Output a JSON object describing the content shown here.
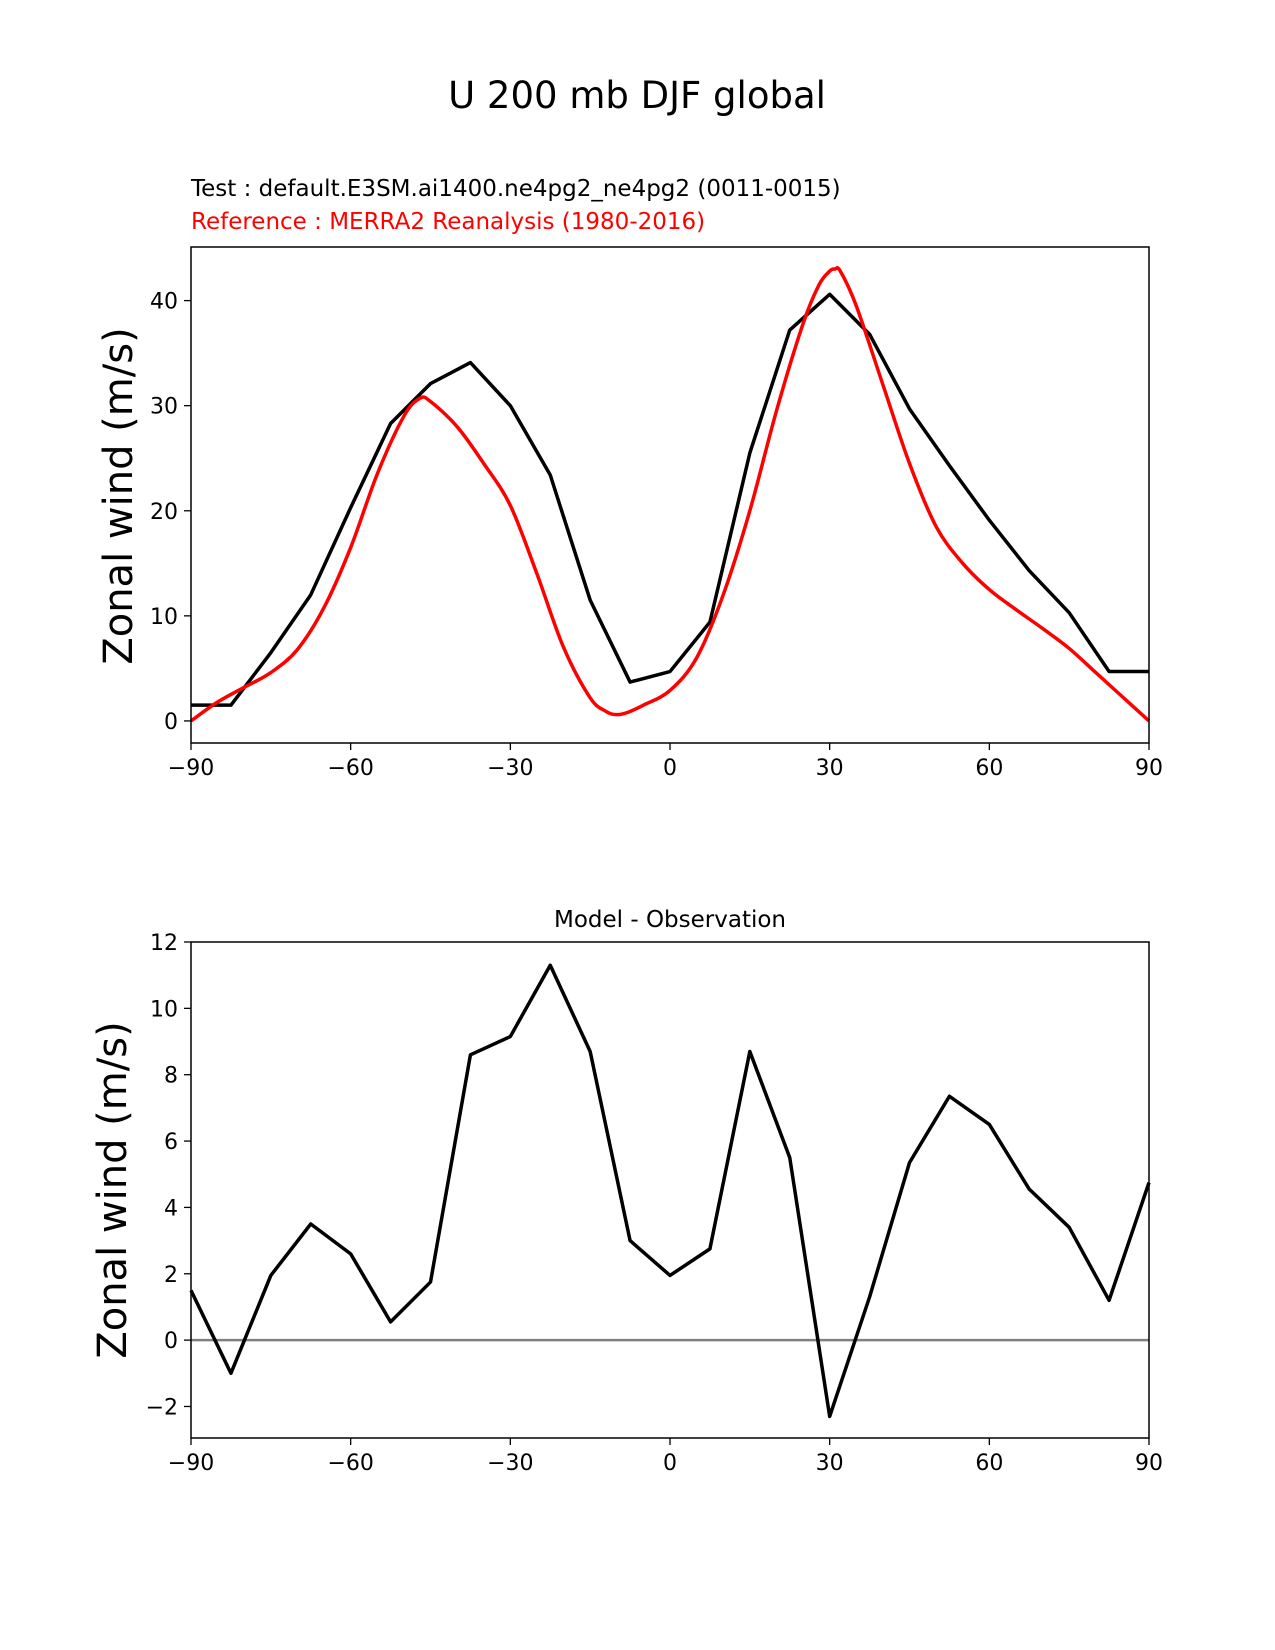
{
  "figure": {
    "title": "U 200 mb DJF global"
  },
  "chart_data": [
    {
      "type": "line",
      "test_label": "Test : default.E3SM.ai1400.ne4pg2_ne4pg2 (0011-0015)",
      "reference_label": "Reference : MERRA2 Reanalysis (1980-2016)",
      "xlabel": "",
      "ylabel": "Zonal wind (m/s)",
      "xlim": [
        -90,
        90
      ],
      "ylim": [
        -2.1,
        45.1
      ],
      "xticks": [
        -90,
        -60,
        -30,
        0,
        30,
        60,
        90
      ],
      "xtick_labels": [
        "−90",
        "−60",
        "−30",
        "0",
        "30",
        "60",
        "90"
      ],
      "yticks": [
        0,
        10,
        20,
        30,
        40
      ],
      "ytick_labels": [
        "0",
        "10",
        "20",
        "30",
        "40"
      ],
      "colors": {
        "test": "#000000",
        "reference": "#ff0000"
      },
      "series": [
        {
          "name": "Test",
          "x": [
            -90,
            -82.5,
            -75,
            -67.5,
            -60,
            -52.5,
            -45,
            -37.5,
            -30,
            -22.5,
            -15,
            -7.5,
            0,
            7.5,
            15,
            22.5,
            30,
            37.5,
            45,
            52.5,
            60,
            67.5,
            75,
            82.5,
            90
          ],
          "values": [
            1.5,
            1.5,
            6.5,
            12.0,
            20.3,
            28.3,
            32.1,
            34.1,
            30.0,
            23.4,
            11.5,
            3.7,
            4.7,
            9.4,
            25.5,
            37.2,
            40.6,
            36.8,
            29.7,
            24.3,
            19.1,
            14.3,
            10.3,
            4.7,
            4.7
          ]
        },
        {
          "name": "Reference",
          "x": [
            -90,
            -85,
            -80,
            -75,
            -70,
            -65,
            -60,
            -55,
            -50,
            -47,
            -45,
            -40,
            -35,
            -30,
            -25,
            -20,
            -15,
            -12,
            -10,
            -8,
            -5,
            0,
            5,
            10,
            15,
            20,
            25,
            28,
            30,
            31,
            32,
            35,
            40,
            45,
            50,
            55,
            60,
            65,
            70,
            75,
            80,
            85,
            90
          ],
          "values": [
            0.0,
            1.8,
            3.2,
            4.6,
            6.8,
            10.8,
            16.5,
            23.5,
            29.0,
            30.7,
            30.4,
            28.0,
            24.5,
            20.5,
            14.0,
            7.0,
            2.2,
            0.9,
            0.6,
            0.8,
            1.5,
            2.9,
            6.0,
            12.0,
            20.0,
            29.5,
            37.8,
            41.5,
            42.8,
            43.0,
            42.8,
            39.5,
            32.0,
            24.5,
            18.5,
            15.0,
            12.5,
            10.6,
            8.8,
            6.9,
            4.6,
            2.3,
            0.0
          ]
        }
      ]
    },
    {
      "type": "line",
      "title": "Model - Observation",
      "xlabel": "",
      "ylabel": "Zonal wind (m/s)",
      "xlim": [
        -90,
        90
      ],
      "ylim": [
        -2.95,
        12.0
      ],
      "xticks": [
        -90,
        -60,
        -30,
        0,
        30,
        60,
        90
      ],
      "xtick_labels": [
        "−90",
        "−60",
        "−30",
        "0",
        "30",
        "60",
        "90"
      ],
      "yticks": [
        -2,
        0,
        2,
        4,
        6,
        8,
        10,
        12
      ],
      "ytick_labels": [
        "−2",
        "0",
        "2",
        "4",
        "6",
        "8",
        "10",
        "12"
      ],
      "zero_line_color": "#808080",
      "colors": {
        "difference": "#000000"
      },
      "series": [
        {
          "name": "Model - Observation",
          "x": [
            -90,
            -82.5,
            -75,
            -67.5,
            -60,
            -52.5,
            -45,
            -37.5,
            -30,
            -22.5,
            -15,
            -7.5,
            0,
            7.5,
            15,
            22.5,
            30,
            37.5,
            45,
            52.5,
            60,
            67.5,
            75,
            82.5,
            90
          ],
          "values": [
            1.5,
            -1.0,
            1.95,
            3.5,
            2.6,
            0.55,
            1.75,
            8.6,
            9.15,
            11.3,
            8.7,
            3.0,
            1.95,
            2.75,
            8.7,
            5.5,
            -2.3,
            1.3,
            5.35,
            7.35,
            6.5,
            4.55,
            3.4,
            1.2,
            4.75
          ]
        }
      ]
    }
  ]
}
